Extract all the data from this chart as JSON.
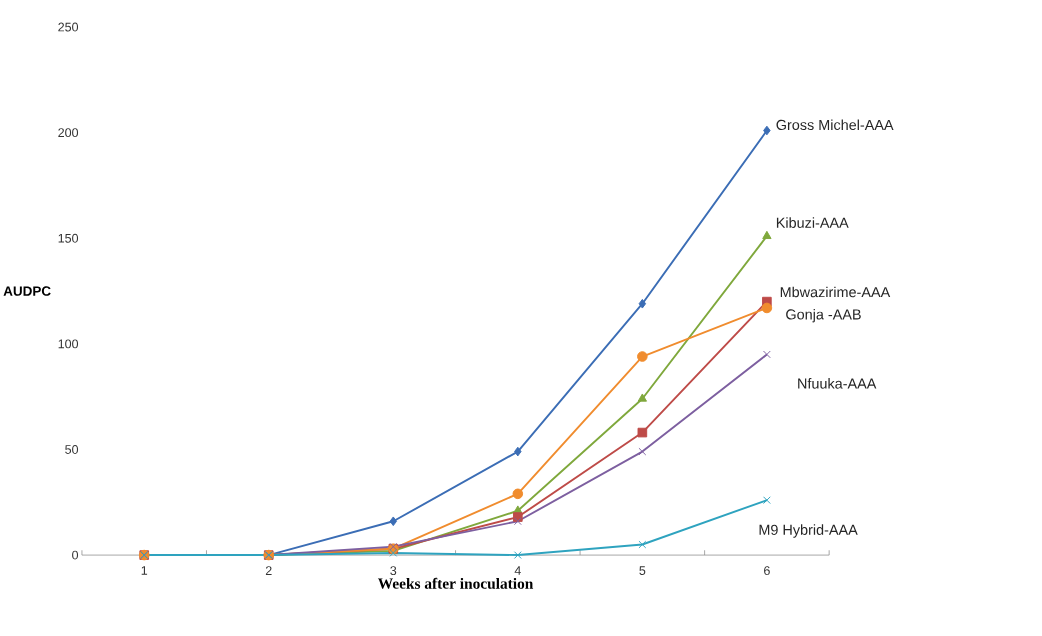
{
  "chart_data": {
    "type": "line",
    "xlabel": "Weeks after inoculation",
    "ylabel": "AUDPC",
    "categories": [
      "1",
      "2",
      "3",
      "4",
      "5",
      "6"
    ],
    "series": [
      {
        "name": "Gross Michel-AAA",
        "color": "#3b6db5",
        "marker": "diamond",
        "values": [
          0,
          0,
          16,
          49,
          119,
          201
        ]
      },
      {
        "name": "Kibuzi-AAA",
        "color": "#7fa83c",
        "marker": "triangle",
        "values": [
          0,
          0,
          2,
          21,
          74,
          151
        ]
      },
      {
        "name": "Mbwazirime-AAA",
        "color": "#be4b48",
        "marker": "square",
        "values": [
          0,
          0,
          3,
          18,
          58,
          120
        ]
      },
      {
        "name": "Gonja -AAB",
        "color": "#f08c2e",
        "marker": "circle",
        "values": [
          0,
          0,
          3,
          29,
          94,
          117
        ]
      },
      {
        "name": "Nfuuka-AAA",
        "color": "#7d5fa0",
        "marker": "cross",
        "values": [
          0,
          0,
          4,
          16,
          49,
          95
        ]
      },
      {
        "name": "M9 Hybrid-AAA",
        "color": "#2ea3bf",
        "marker": "cross",
        "values": [
          0,
          0,
          1,
          0,
          5,
          26
        ]
      }
    ],
    "ylim": [
      0,
      250
    ],
    "yticks": [
      0,
      50,
      100,
      150,
      200,
      250
    ],
    "grid": false,
    "legend": false
  }
}
